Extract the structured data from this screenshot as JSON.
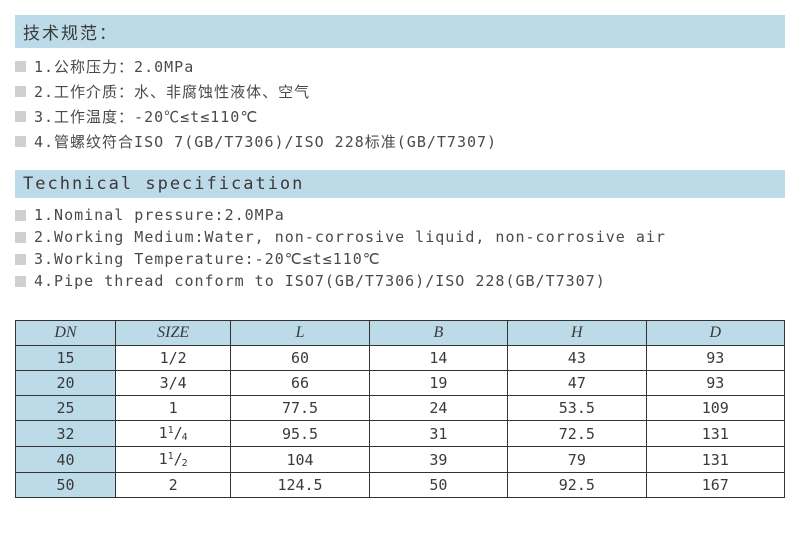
{
  "headers": {
    "cn": "技术规范：",
    "en": "Technical specification"
  },
  "specs_cn": [
    "1.公称压力：2.0MPa",
    "2.工作介质：水、非腐蚀性液体、空气",
    "3.工作温度：-20℃≤t≤110℃",
    "4.管螺纹符合ISO 7(GB/T7306)/ISO 228标准(GB/T7307)"
  ],
  "specs_en": [
    "1.Nominal pressure:2.0MPa",
    "2.Working Medium:Water, non-corrosive liquid, non-corrosive air",
    "3.Working Temperature:-20℃≤t≤110℃",
    "4.Pipe thread conform to ISO7(GB/T7306)/ISO 228(GB/T7307)"
  ],
  "table": {
    "columns": [
      "DN",
      "SIZE",
      "L",
      "B",
      "H",
      "D"
    ],
    "rows": [
      {
        "dn": "15",
        "size": "1/2",
        "l": "60",
        "b": "14",
        "h": "43",
        "d": "93"
      },
      {
        "dn": "20",
        "size": "3/4",
        "l": "66",
        "b": "19",
        "h": "47",
        "d": "93"
      },
      {
        "dn": "25",
        "size": "1",
        "l": "77.5",
        "b": "24",
        "h": "53.5",
        "d": "109"
      },
      {
        "dn": "32",
        "size": "1 1/4",
        "l": "95.5",
        "b": "31",
        "h": "72.5",
        "d": "131"
      },
      {
        "dn": "40",
        "size": "1 1/2",
        "l": "104",
        "b": "39",
        "h": "79",
        "d": "131"
      },
      {
        "dn": "50",
        "size": "2",
        "l": "124.5",
        "b": "50",
        "h": "92.5",
        "d": "167"
      }
    ]
  },
  "style": {
    "header_bg": "#bcdae8",
    "bullet_color": "#cfcfcf",
    "text_color": "#4a4a4a",
    "border_color": "#333333"
  }
}
